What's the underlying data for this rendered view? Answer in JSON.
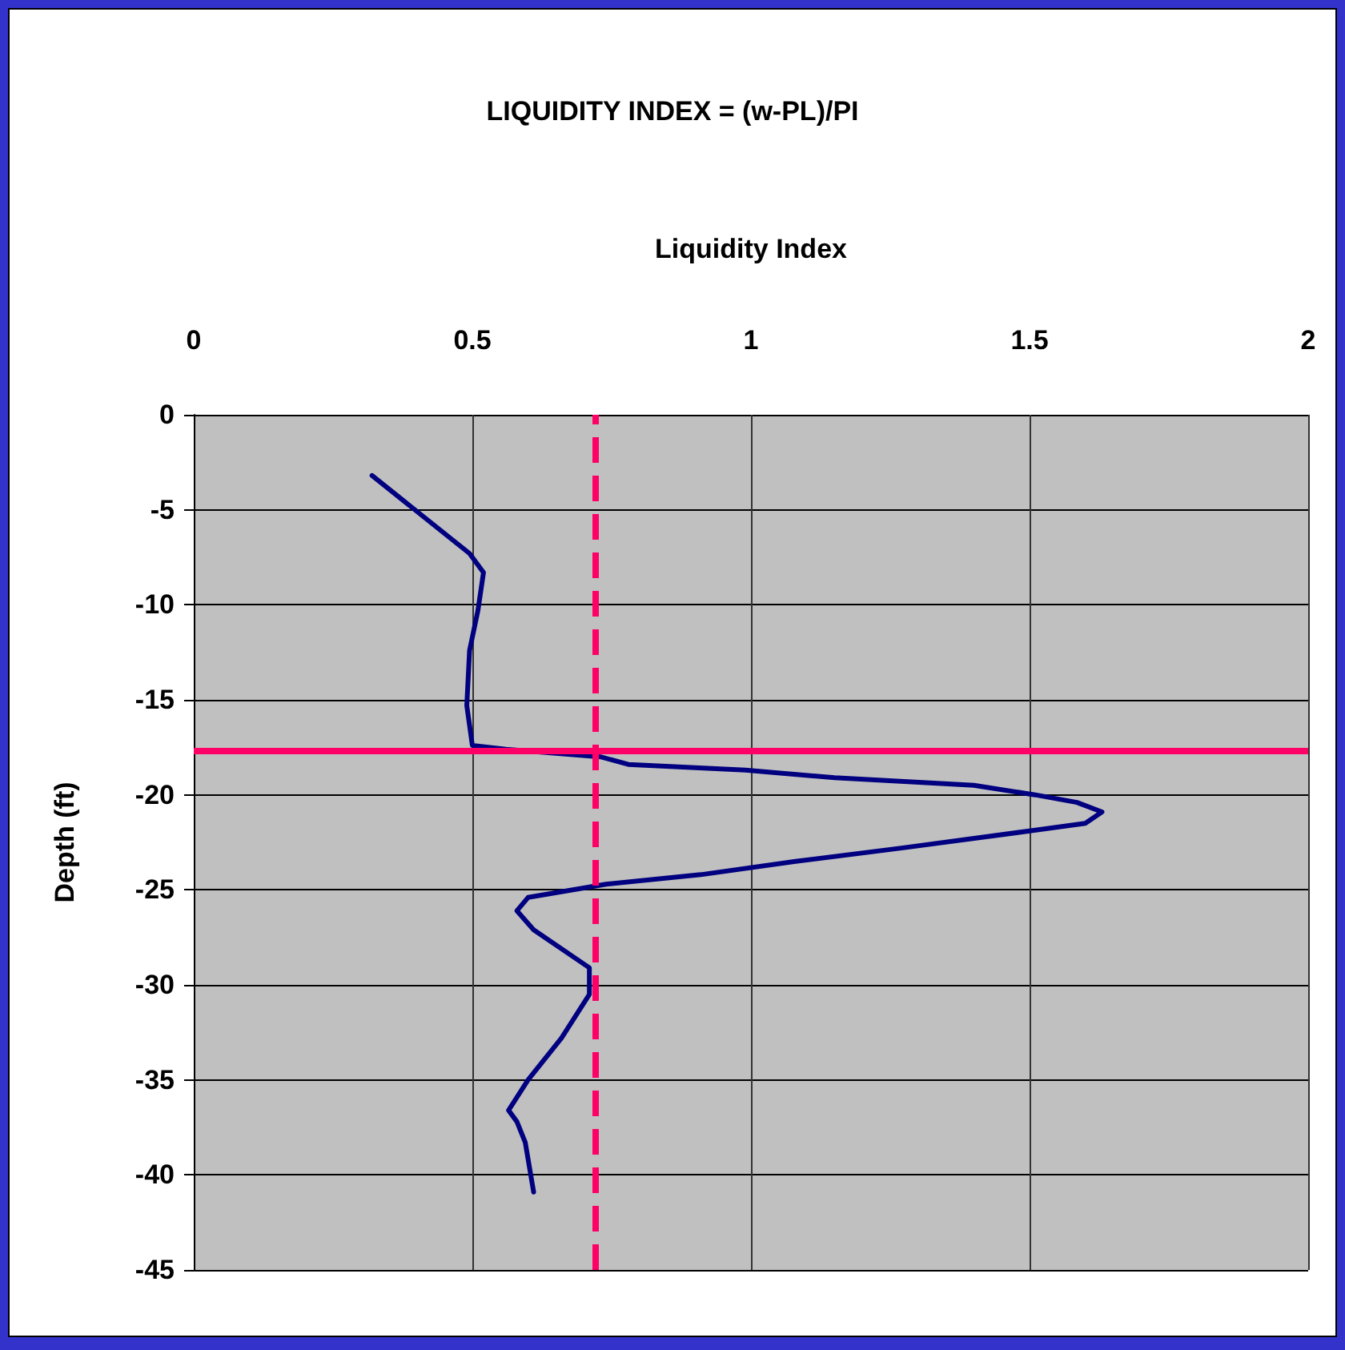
{
  "chart_data": {
    "type": "line",
    "title": "LIQUIDITY INDEX = (w-PL)/PI",
    "xlabel": "Liquidity Index",
    "ylabel": "Depth (ft)",
    "series": [
      {
        "color": "#000080",
        "x": [
          0.32,
          0.495,
          0.52,
          0.51,
          0.495,
          0.49,
          0.5,
          0.56,
          0.73,
          0.78,
          0.99,
          1.15,
          1.4,
          1.51,
          1.585,
          1.63,
          1.6,
          1.5,
          1.27,
          1.08,
          0.91,
          0.74,
          0.6,
          0.58,
          0.61,
          0.71,
          0.71,
          0.71,
          0.66,
          0.6,
          0.565,
          0.58,
          0.595,
          0.61
        ],
        "values": [
          -3.2,
          -7.3,
          -8.3,
          -10.3,
          -12.4,
          -15.3,
          -17.4,
          -17.6,
          -18.0,
          -18.4,
          -18.7,
          -19.1,
          -19.5,
          -20.0,
          -20.4,
          -20.9,
          -21.5,
          -21.9,
          -22.8,
          -23.5,
          -24.2,
          -24.7,
          -25.4,
          -26.1,
          -27.1,
          -29.1,
          -29.4,
          -30.5,
          -32.8,
          -35.0,
          -36.6,
          -37.2,
          -38.3,
          -40.9
        ]
      }
    ],
    "xlim": [
      0,
      2
    ],
    "xticks": [
      0,
      0.5,
      1,
      1.5,
      2
    ],
    "ylim": [
      -45,
      0
    ],
    "yticks": [
      -45,
      -40,
      -35,
      -30,
      -25,
      -20,
      -15,
      -10,
      -5,
      0
    ],
    "ref_lines": [
      {
        "axis": "x",
        "value": 0.725,
        "color": "#ff0066",
        "line_style": "dashed"
      },
      {
        "axis": "y",
        "value": -17.7,
        "color": "#ff0066",
        "line_style": "solid"
      }
    ],
    "grid": true,
    "marker": "none",
    "line_style": "solid"
  }
}
